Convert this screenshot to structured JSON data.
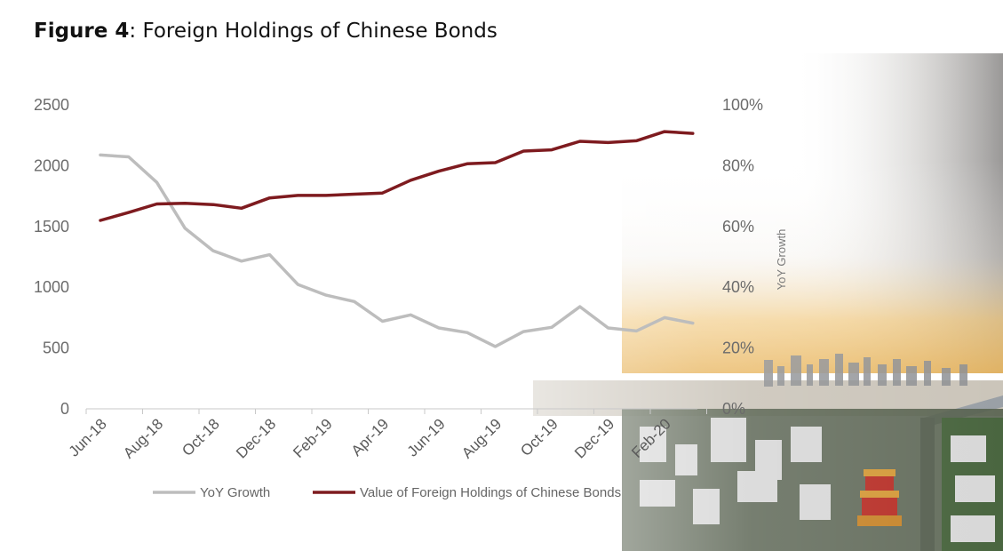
{
  "figure": {
    "label": "Figure 4",
    "separator": ":",
    "text": " Foreign Holdings of Chinese Bonds"
  },
  "colors": {
    "holdings": "#7e1b1f",
    "yoy": "#bdbdbd",
    "axis": "#c9c9c9"
  },
  "chart_data": {
    "type": "line",
    "title": "Figure 4: Foreign Holdings of Chinese Bonds",
    "x_tick_labels": [
      "Jun-18",
      "Aug-18",
      "Oct-18",
      "Dec-18",
      "Feb-19",
      "Apr-19",
      "Jun-19",
      "Aug-19",
      "Oct-19",
      "Dec-19",
      "Feb-20"
    ],
    "x": [
      "Jun-18",
      "Jul-18",
      "Aug-18",
      "Sep-18",
      "Oct-18",
      "Nov-18",
      "Dec-18",
      "Jan-19",
      "Feb-19",
      "Mar-19",
      "Apr-19",
      "May-19",
      "Jun-19",
      "Jul-19",
      "Aug-19",
      "Sep-19",
      "Oct-19",
      "Nov-19",
      "Dec-19",
      "Jan-20",
      "Feb-20",
      "Mar-20"
    ],
    "left_axis": {
      "ylim": [
        0,
        2500
      ],
      "ticks": [
        0,
        500,
        1000,
        1500,
        2000,
        2500
      ]
    },
    "right_axis": {
      "label": "YoY Growth",
      "ylim": [
        0,
        100
      ],
      "ticks": [
        "0%",
        "20%",
        "40%",
        "60%",
        "80%",
        "100%"
      ]
    },
    "series": [
      {
        "name": "YoY Growth",
        "axis": "right",
        "unit": "%",
        "values": [
          83.5,
          82.9,
          74.5,
          59.4,
          52.0,
          48.6,
          50.7,
          40.9,
          37.4,
          35.3,
          28.8,
          30.9,
          26.6,
          25.1,
          20.5,
          25.4,
          26.8,
          33.6,
          26.6,
          25.6,
          30.0,
          28.2
        ]
      },
      {
        "name": "Value of Foreign Holdings of Chinese Bonds",
        "axis": "left",
        "values": [
          1550,
          1615,
          1685,
          1690,
          1680,
          1650,
          1735,
          1755,
          1755,
          1765,
          1775,
          1880,
          1955,
          2015,
          2025,
          2120,
          2130,
          2200,
          2190,
          2205,
          2280,
          2265
        ]
      }
    ],
    "legend": "bottom",
    "grid": false
  }
}
